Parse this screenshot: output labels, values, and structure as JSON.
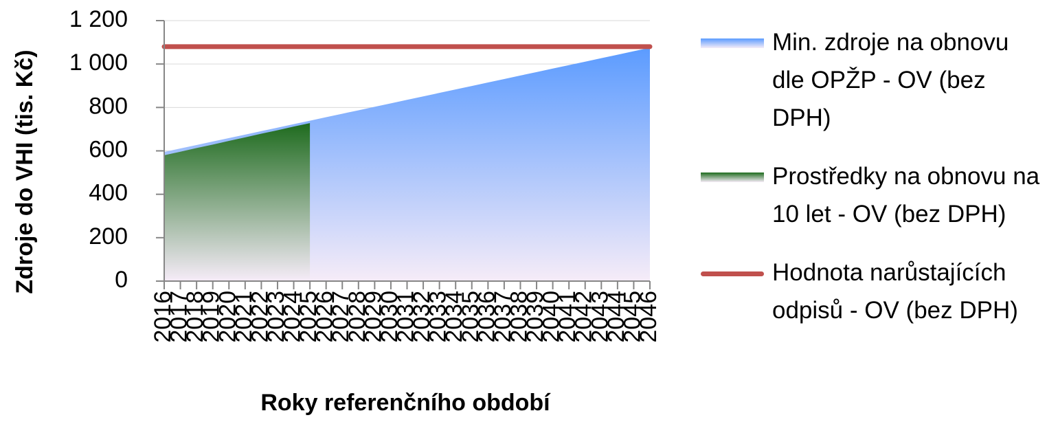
{
  "chart_data": {
    "type": "area",
    "y_label": "Zdroje do VHI (tis. Kč)",
    "x_label": "Roky referenčního období",
    "categories": [
      "2016",
      "2017",
      "2018",
      "2019",
      "2020",
      "2021",
      "2022",
      "2023",
      "2024",
      "2025",
      "2026",
      "2027",
      "2028",
      "2029",
      "2030",
      "2031",
      "2032",
      "2033",
      "2034",
      "2035",
      "2036",
      "2037",
      "2038",
      "2039",
      "2040",
      "2041",
      "2042",
      "2043",
      "2044",
      "2045",
      "2046"
    ],
    "series": [
      {
        "name": "Min. zdroje na obnovu dle OPŽP - OV (bez DPH)",
        "type": "area",
        "color": "#5b9bff",
        "values": [
          595,
          611,
          627,
          643,
          659,
          675,
          691,
          707,
          723,
          739,
          755,
          771,
          787,
          803,
          819,
          835,
          851,
          867,
          883,
          899,
          915,
          931,
          947,
          963,
          979,
          995,
          1011,
          1027,
          1043,
          1059,
          1075
        ]
      },
      {
        "name": "Prostředky na obnovu na 10 let - OV (bez DPH)",
        "type": "area",
        "color": "#1e6b1e",
        "values": [
          580,
          596,
          613,
          629,
          646,
          662,
          679,
          695,
          712,
          728,
          null,
          null,
          null,
          null,
          null,
          null,
          null,
          null,
          null,
          null,
          null,
          null,
          null,
          null,
          null,
          null,
          null,
          null,
          null,
          null,
          null
        ]
      },
      {
        "name": "Hodnota narůstajících odpisů - OV (bez DPH)",
        "type": "line",
        "color": "#c0504d",
        "values": [
          1080,
          1080,
          1080,
          1080,
          1080,
          1080,
          1080,
          1080,
          1080,
          1080,
          1080,
          1080,
          1080,
          1080,
          1080,
          1080,
          1080,
          1080,
          1080,
          1080,
          1080,
          1080,
          1080,
          1080,
          1080,
          1080,
          1080,
          1080,
          1080,
          1080,
          1080
        ]
      }
    ],
    "ylim": [
      0,
      1200
    ],
    "yticks": [
      0,
      200,
      400,
      600,
      800,
      {
        "value": 1000,
        "label": "1 000"
      },
      {
        "value": 1200,
        "label": "1 200"
      }
    ],
    "grid": true,
    "legend": "right"
  }
}
